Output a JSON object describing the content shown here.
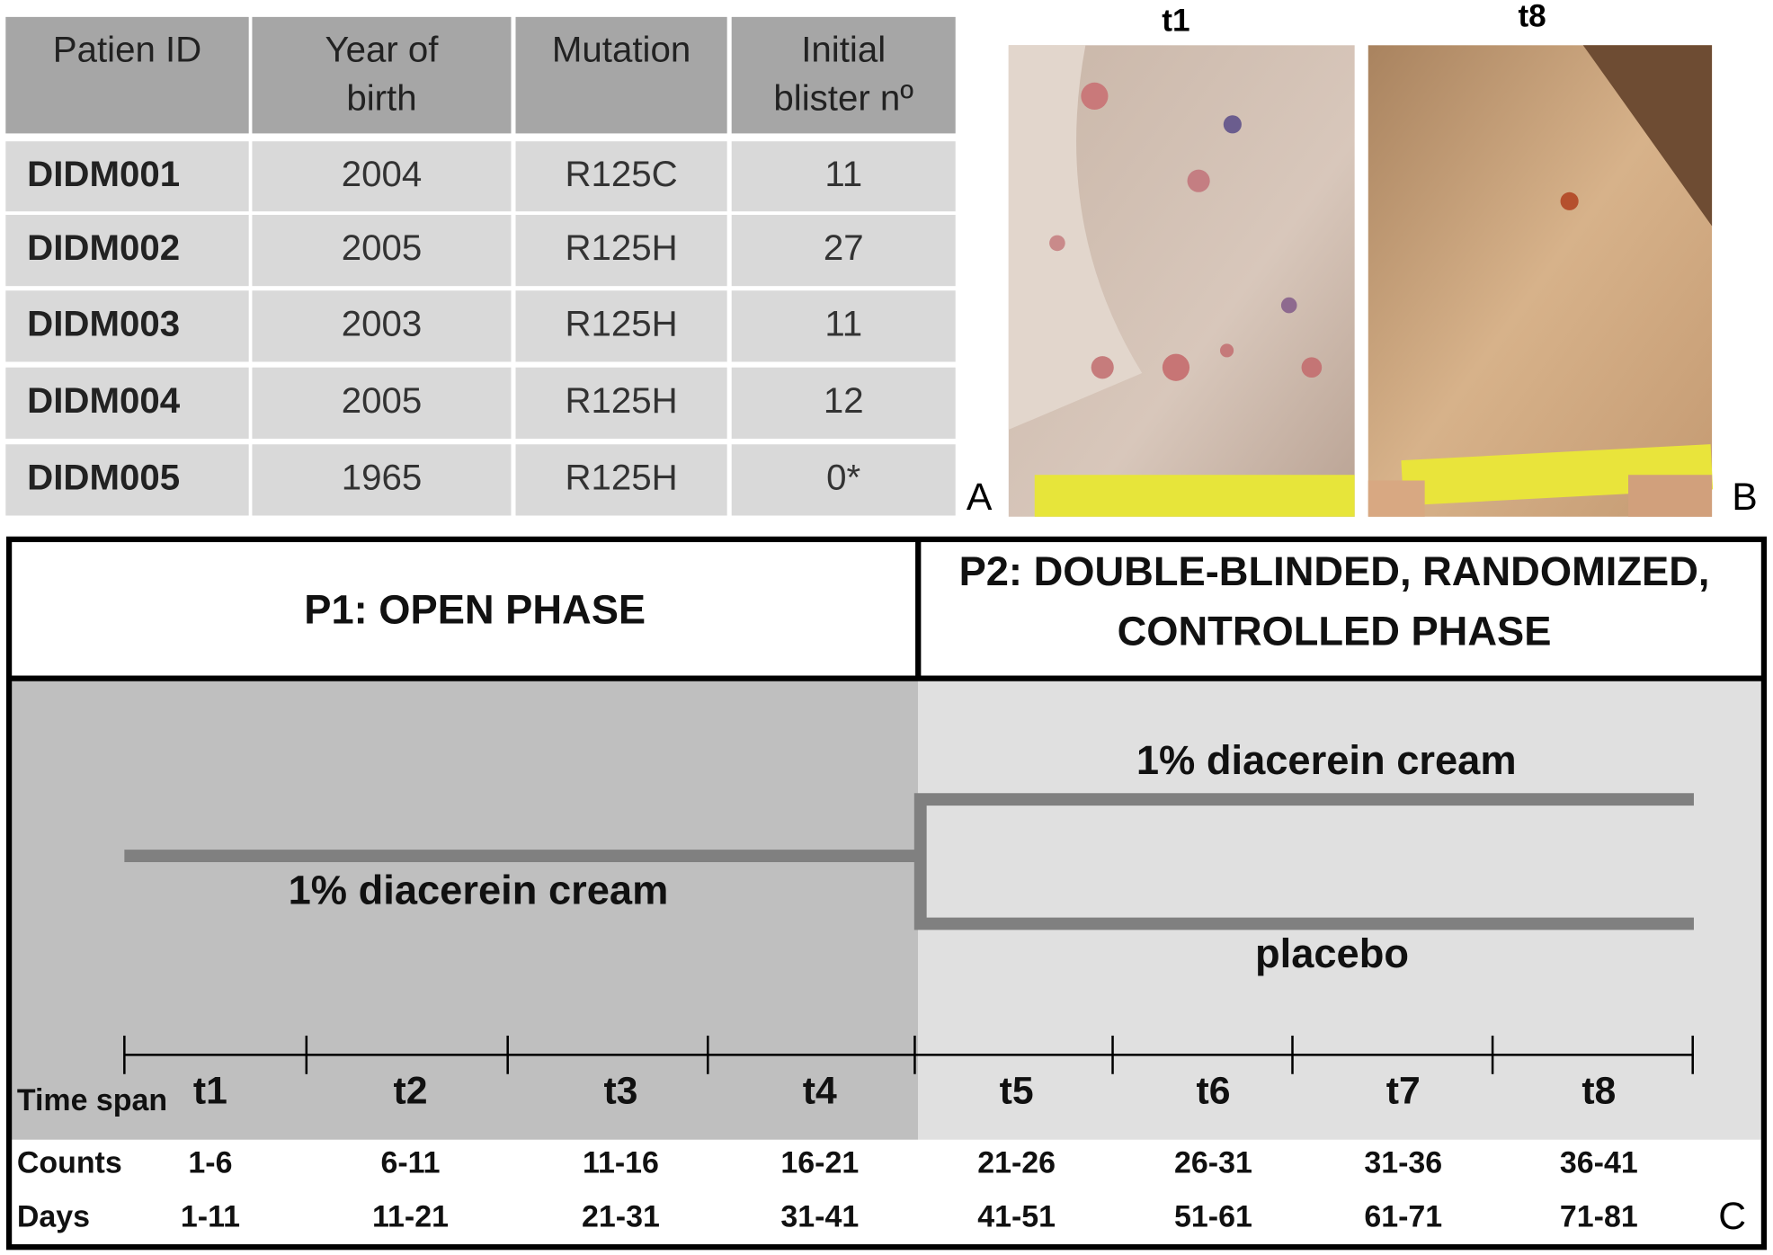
{
  "table": {
    "headers": [
      [
        "Patien ID"
      ],
      [
        "Year of",
        "birth"
      ],
      [
        "Mutation"
      ],
      [
        "Initial",
        "blister nº"
      ]
    ],
    "rows": [
      [
        "DIDM001",
        "2004",
        "R125C",
        "11"
      ],
      [
        "DIDM002",
        "2005",
        "R125H",
        "27"
      ],
      [
        "DIDM003",
        "2003",
        "R125H",
        "11"
      ],
      [
        "DIDM004",
        "2005",
        "R125H",
        "12"
      ],
      [
        "DIDM005",
        "1965",
        "R125H",
        "0*"
      ]
    ]
  },
  "photos": {
    "left_title": "t1",
    "right_title": "t8",
    "left_label": "A",
    "right_label": "B"
  },
  "diagram": {
    "phase1_title": "P1: OPEN PHASE",
    "phase2_title": [
      "P2: DOUBLE-BLINDED, RANDOMIZED,",
      "CONTROLLED PHASE"
    ],
    "phase1_arm": "1% diacerein cream",
    "phase2_arm_top": "1% diacerein cream",
    "phase2_arm_bottom": "placebo",
    "time_label": "Time span",
    "time_spans": [
      "t1",
      "t2",
      "t3",
      "t4",
      "t5",
      "t6",
      "t7",
      "t8"
    ],
    "counts_label": "Counts",
    "counts": [
      "1-6",
      "6-11",
      "11-16",
      "16-21",
      "21-26",
      "26-31",
      "31-36",
      "36-41"
    ],
    "days_label": "Days",
    "days": [
      "1-11",
      "11-21",
      "21-31",
      "31-41",
      "41-51",
      "51-61",
      "61-71",
      "71-81"
    ],
    "panel_label": "C"
  }
}
